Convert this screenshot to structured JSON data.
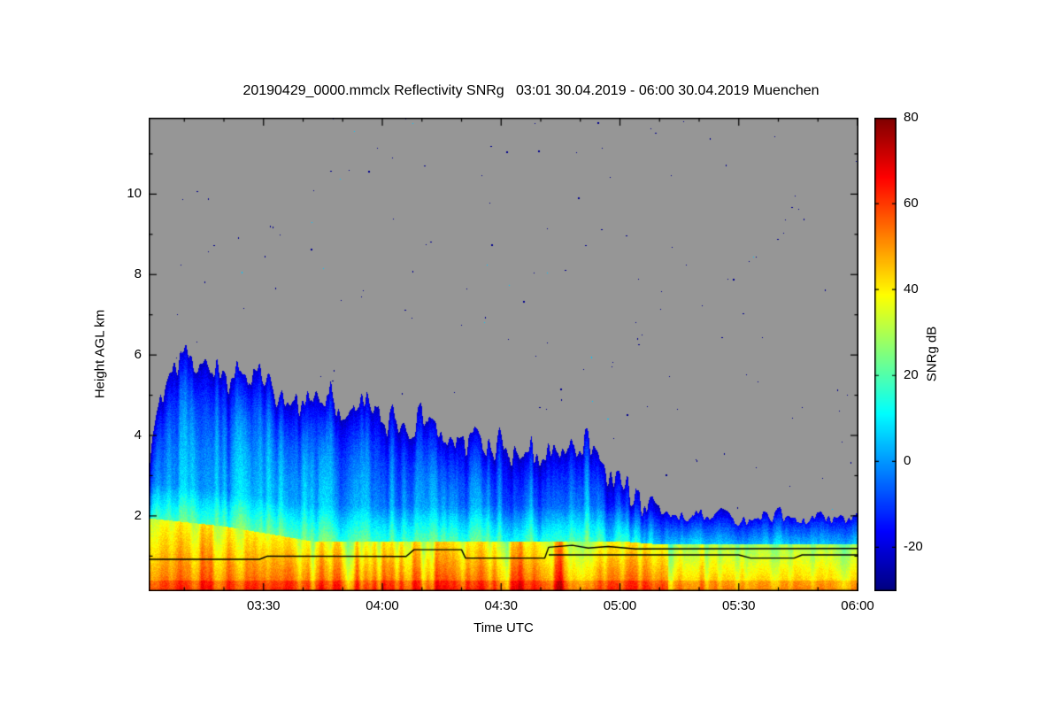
{
  "title": "20190429_0000.mmclx Reflectivity SNRg   03:01 30.04.2019 - 06:00 30.04.2019 Muenchen",
  "axes": {
    "x": {
      "label": "Time UTC",
      "range_minutes": [
        181,
        360
      ],
      "major_ticks": [
        {
          "label": "03:30",
          "minutes": 210
        },
        {
          "label": "04:00",
          "minutes": 240
        },
        {
          "label": "04:30",
          "minutes": 270
        },
        {
          "label": "05:00",
          "minutes": 300
        },
        {
          "label": "05:30",
          "minutes": 330
        },
        {
          "label": "06:00",
          "minutes": 360
        }
      ],
      "minor_tick_interval_minutes": 10
    },
    "y": {
      "label": "Height AGL km",
      "range_km": [
        0.15,
        11.9
      ],
      "major_ticks": [
        {
          "label": "2",
          "km": 2
        },
        {
          "label": "4",
          "km": 4
        },
        {
          "label": "6",
          "km": 6
        },
        {
          "label": "8",
          "km": 8
        },
        {
          "label": "10",
          "km": 10
        }
      ],
      "minor_tick_interval_km": 1
    }
  },
  "colorbar": {
    "label": "SNRg dB",
    "range_db": [
      -30,
      80
    ],
    "ticks": [
      {
        "label": "80",
        "db": 80
      },
      {
        "label": "60",
        "db": 60
      },
      {
        "label": "40",
        "db": 40
      },
      {
        "label": "20",
        "db": 20
      },
      {
        "label": "0",
        "db": 0
      },
      {
        "label": "-20",
        "db": -20
      }
    ]
  },
  "chart_data": {
    "type": "heatmap",
    "title": "20190429_0000.mmclx Reflectivity SNRg   03:01 30.04.2019 - 06:00 30.04.2019 Muenchen",
    "xlabel": "Time UTC",
    "ylabel": "Height AGL km",
    "value_label": "SNRg dB",
    "time_start": "03:01 30.04.2019",
    "time_end": "06:00 30.04.2019",
    "x_range_minutes": [
      181,
      360
    ],
    "y_range_km": [
      0.15,
      11.9
    ],
    "value_range_db": [
      -30,
      80
    ],
    "colormap": "jet",
    "background_no_data_color": "#969696",
    "description": "Cloud radar SNRg time-height quicklook: precipitating cloud whose echo top sinks from about 6 km near 03:05 UTC to about 2 km after 05:10 UTC; blue/cyan fall streaks aloft; strong yellow-orange-red returns below about 1.3 km with dark-red cores between 03:45 and 05:00; black melting-layer boundary lines near 1 km stepping up to about 1.2 km after 04:45; gray background means no detected signal, with sparse dark-blue noise speckles.",
    "echo_top_profile": {
      "points_t_km": [
        [
          181,
          3.4
        ],
        [
          183,
          4.3
        ],
        [
          185,
          5.3
        ],
        [
          187,
          5.9
        ],
        [
          191,
          5.5
        ],
        [
          195,
          5.8
        ],
        [
          199,
          5.3
        ],
        [
          204,
          5.6
        ],
        [
          209,
          5.1
        ],
        [
          214,
          5.0
        ],
        [
          219,
          4.8
        ],
        [
          224,
          5.0
        ],
        [
          229,
          4.6
        ],
        [
          234,
          4.4
        ],
        [
          239,
          4.5
        ],
        [
          244,
          4.2
        ],
        [
          249,
          4.1
        ],
        [
          254,
          4.0
        ],
        [
          259,
          3.9
        ],
        [
          264,
          3.8
        ],
        [
          269,
          3.6
        ],
        [
          274,
          3.6
        ],
        [
          279,
          3.5
        ],
        [
          284,
          3.4
        ],
        [
          287,
          3.5
        ],
        [
          291,
          3.9
        ],
        [
          293,
          3.5
        ],
        [
          297,
          3.0
        ],
        [
          301,
          2.7
        ],
        [
          305,
          2.4
        ],
        [
          309,
          2.2
        ],
        [
          314,
          2.0
        ],
        [
          320,
          1.9
        ],
        [
          326,
          2.0
        ],
        [
          332,
          1.9
        ],
        [
          338,
          2.0
        ],
        [
          344,
          1.9
        ],
        [
          350,
          2.0
        ],
        [
          355,
          1.9
        ],
        [
          360,
          2.0
        ]
      ]
    },
    "bright_band_top_profile": {
      "points_t_km": [
        [
          181,
          1.95
        ],
        [
          200,
          1.75
        ],
        [
          212,
          1.55
        ],
        [
          222,
          1.38
        ],
        [
          300,
          1.38
        ],
        [
          310,
          1.3
        ],
        [
          360,
          1.3
        ]
      ]
    },
    "intense_core_envelope": {
      "points_t_frac": [
        [
          181,
          0.45
        ],
        [
          214,
          0.5
        ],
        [
          224,
          1.0
        ],
        [
          262,
          0.95
        ],
        [
          278,
          0.8
        ],
        [
          288,
          1.0
        ],
        [
          298,
          0.9
        ],
        [
          306,
          0.55
        ],
        [
          312,
          0.35
        ],
        [
          360,
          0.3
        ]
      ]
    },
    "boundary_lines": [
      {
        "name": "melting-layer-upper",
        "points_t_km": [
          [
            181,
            0.92
          ],
          [
            209,
            0.92
          ],
          [
            211,
            1.0
          ],
          [
            246,
            0.99
          ],
          [
            248,
            1.16
          ],
          [
            260,
            1.16
          ],
          [
            261,
            0.95
          ],
          [
            281,
            0.95
          ],
          [
            282,
            1.22
          ],
          [
            288,
            1.27
          ],
          [
            292,
            1.2
          ],
          [
            297,
            1.24
          ],
          [
            304,
            1.18
          ],
          [
            360,
            1.19
          ]
        ]
      },
      {
        "name": "melting-layer-lower",
        "points_t_km": [
          [
            282,
            1.03
          ],
          [
            330,
            1.03
          ],
          [
            333,
            0.95
          ],
          [
            344,
            0.95
          ],
          [
            346,
            1.03
          ],
          [
            360,
            1.03
          ]
        ]
      }
    ],
    "speckle_noise": {
      "count": 200,
      "color": "#00008c",
      "alt_color": "#00c8ff"
    }
  }
}
